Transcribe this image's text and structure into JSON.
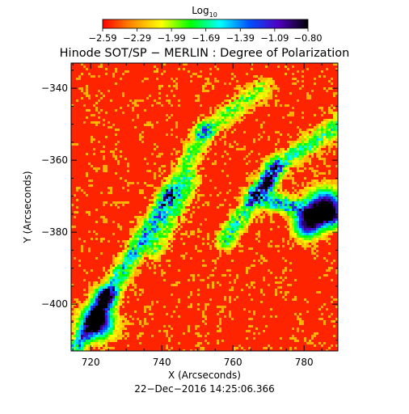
{
  "chart_data": {
    "type": "heatmap",
    "title": "Hinode SOT/SP − MERLIN : Degree of Polarization",
    "timestamp": "22−Dec−2016 14:25:06.366",
    "xlabel": "X (Arcseconds)",
    "ylabel": "Y (Arcseconds)",
    "xlim": [
      714.5,
      789.5
    ],
    "ylim": [
      -413,
      -333
    ],
    "x_ticks": [
      720,
      740,
      760,
      780
    ],
    "x_tick_labels": [
      "720",
      "740",
      "760",
      "780"
    ],
    "y_ticks": [
      -340,
      -360,
      -380,
      -400
    ],
    "y_tick_labels": [
      "−340",
      "−360",
      "−380",
      "−400"
    ],
    "colorbar": {
      "label_main": "Log",
      "label_sub": "10",
      "range": [
        -2.59,
        -0.8
      ],
      "ticks": [
        -2.59,
        -2.29,
        -1.99,
        -1.69,
        -1.39,
        -1.09,
        -0.8
      ],
      "tick_labels": [
        "−2.59",
        "−2.29",
        "−1.99",
        "−1.69",
        "−1.39",
        "−1.09",
        "−0.80"
      ],
      "colors": [
        "#ff0000",
        "#ff8c00",
        "#ffff00",
        "#00ff00",
        "#00ffff",
        "#0050ff",
        "#5000c0",
        "#000000"
      ]
    },
    "grid": false
  }
}
